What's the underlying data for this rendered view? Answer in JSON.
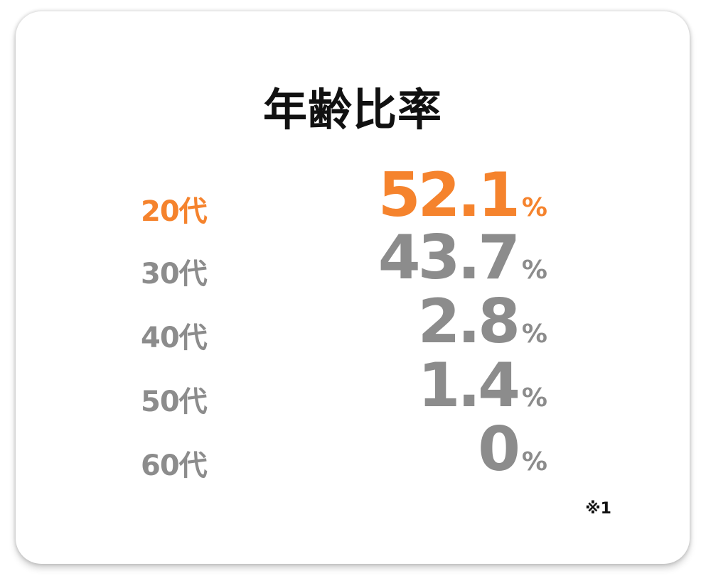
{
  "title": "年齢比率",
  "colors": {
    "highlight": "#f5832d",
    "default": "#8c8c8c"
  },
  "rows": [
    {
      "age": "20代",
      "value": "52.1",
      "unit": "%",
      "highlight": true
    },
    {
      "age": "30代",
      "value": "43.7",
      "unit": "%",
      "highlight": false
    },
    {
      "age": "40代",
      "value": "2.8",
      "unit": "%",
      "highlight": false
    },
    {
      "age": "50代",
      "value": "1.4",
      "unit": "%",
      "highlight": false
    },
    {
      "age": "60代",
      "value": "0",
      "unit": "%",
      "highlight": false
    }
  ],
  "note": "※1"
}
